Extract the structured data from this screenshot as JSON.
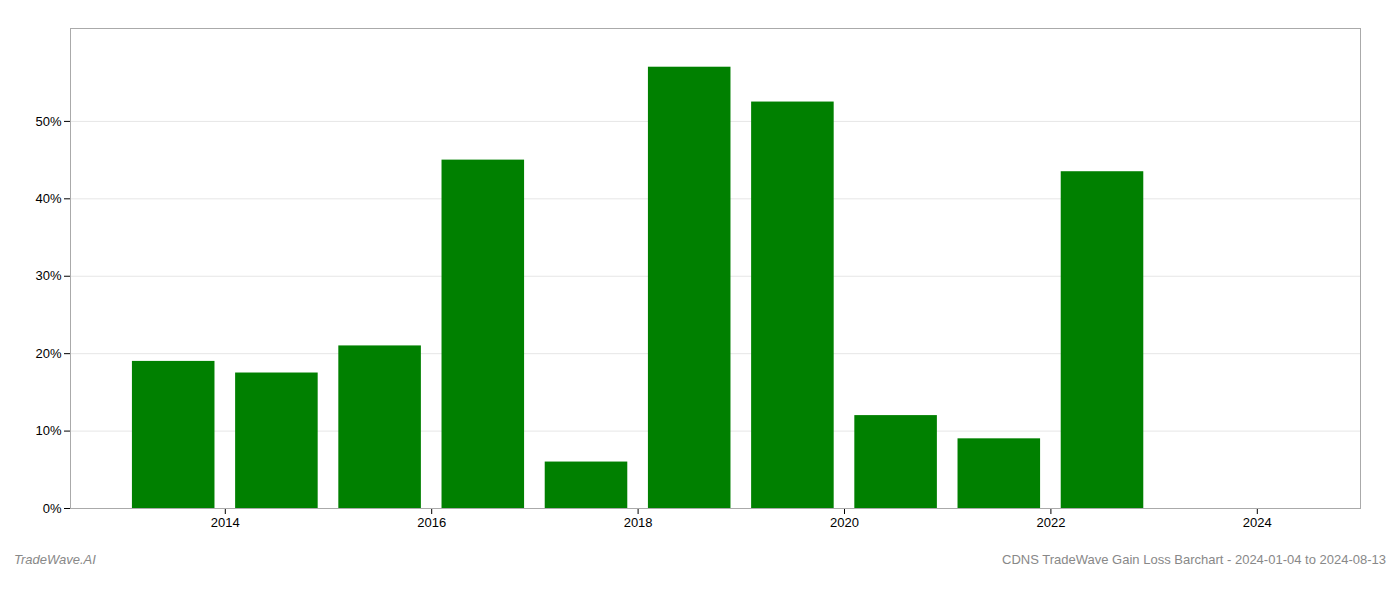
{
  "chart_data": {
    "type": "bar",
    "x": [
      2013.5,
      2014.5,
      2015.5,
      2016.5,
      2017.5,
      2018.5,
      2019.5,
      2020.5,
      2021.5,
      2022.5
    ],
    "values": [
      0.19,
      0.175,
      0.21,
      0.45,
      0.06,
      0.57,
      0.525,
      0.12,
      0.09,
      0.435
    ],
    "color": "#008000",
    "xlim": [
      2012.5,
      2025.0
    ],
    "xticks": [
      2014,
      2016,
      2018,
      2020,
      2022,
      2024
    ],
    "ylim": [
      0,
      0.62
    ],
    "yticks": [
      {
        "value": 0.0,
        "label": "0%"
      },
      {
        "value": 0.1,
        "label": "10%"
      },
      {
        "value": 0.2,
        "label": "20%"
      },
      {
        "value": 0.3,
        "label": "30%"
      },
      {
        "value": 0.4,
        "label": "40%"
      },
      {
        "value": 0.5,
        "label": "50%"
      }
    ],
    "grid": true,
    "annotations": [
      "TradeWave.AI",
      "CDNS TradeWave Gain Loss Barchart - 2024-01-04 to 2024-08-13"
    ]
  }
}
